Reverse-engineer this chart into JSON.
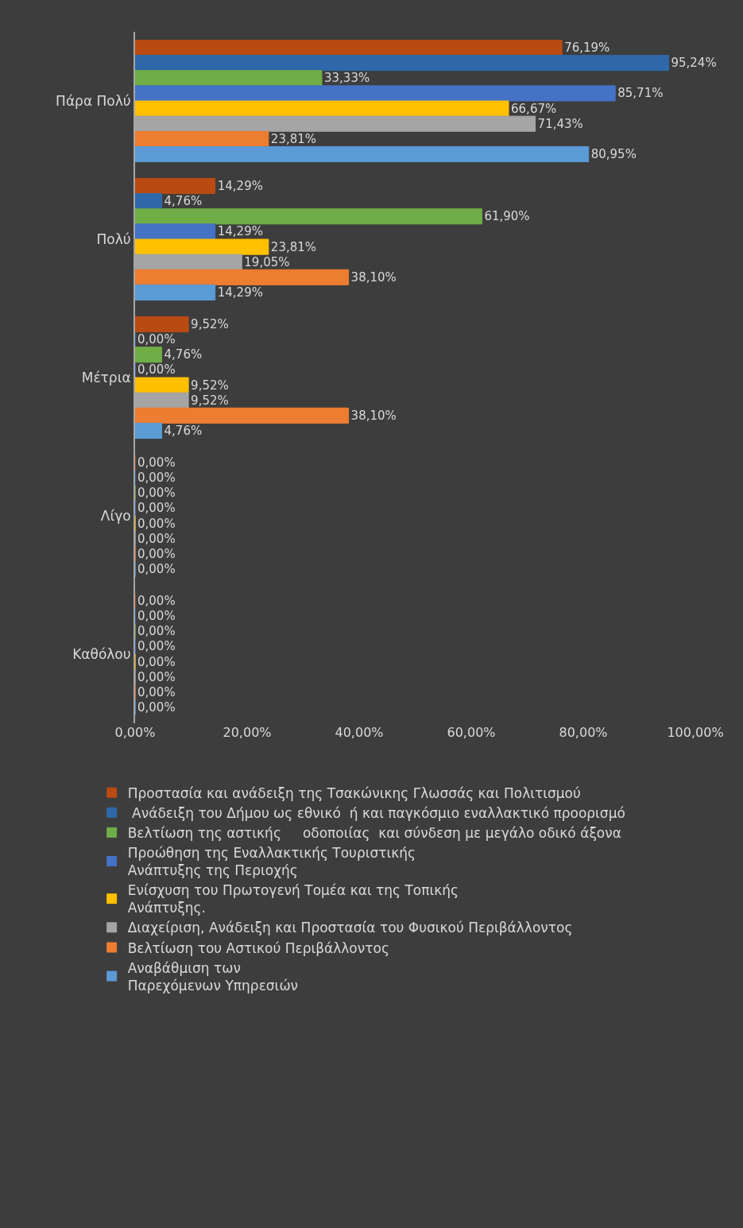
{
  "chart_data": {
    "type": "bar",
    "orientation": "horizontal",
    "categories": [
      "Πάρα Πολύ",
      "Πολύ",
      "Μέτρια",
      "Λίγο",
      "Καθόλου"
    ],
    "series": [
      {
        "name": "Προστασία και ανάδειξη της Τσακώνικης Γλωσσάς και Πολιτισμού",
        "color": "#b94b12",
        "values": [
          76.19,
          14.29,
          9.52,
          0,
          0
        ],
        "value_labels": [
          "76,19%",
          "14,29%",
          "9,52%",
          "0,00%",
          "0,00%"
        ]
      },
      {
        "name": " Ανάδειξη του Δήμου ως εθνικό  ή και παγκόσμιο εναλλακτικό προορισμό",
        "color": "#2f68a8",
        "values": [
          95.24,
          4.76,
          0,
          0,
          0
        ],
        "value_labels": [
          "95,24%",
          "4,76%",
          "0,00%",
          "0,00%",
          "0,00%"
        ]
      },
      {
        "name": "Βελτίωση της αστικής     οδοποιίας  και σύνδεση με μεγάλο οδικό άξονα",
        "color": "#70ad47",
        "values": [
          33.33,
          61.9,
          4.76,
          0,
          0
        ],
        "value_labels": [
          "33,33%",
          "61,90%",
          "4,76%",
          "0,00%",
          "0,00%"
        ]
      },
      {
        "name": "Προώθηση της Εναλλακτικής Τουριστικής\nΑνάπτυξης της Περιοχής",
        "color": "#4472c4",
        "values": [
          85.71,
          14.29,
          0,
          0,
          0
        ],
        "value_labels": [
          "85,71%",
          "14,29%",
          "0,00%",
          "0,00%",
          "0,00%"
        ]
      },
      {
        "name": "Ενίσχυση του Πρωτογενή Τομέα και της Τοπικής\nΑνάπτυξης.",
        "color": "#ffc000",
        "values": [
          66.67,
          23.81,
          9.52,
          0,
          0
        ],
        "value_labels": [
          "66,67%",
          "23,81%",
          "9,52%",
          "0,00%",
          "0,00%"
        ]
      },
      {
        "name": "Διαχείριση, Ανάδειξη και Προστασία του Φυσικού Περιβάλλοντος",
        "color": "#a5a5a5",
        "values": [
          71.43,
          19.05,
          9.52,
          0,
          0
        ],
        "value_labels": [
          "71,43%",
          "19,05%",
          "9,52%",
          "0,00%",
          "0,00%"
        ]
      },
      {
        "name": "Βελτίωση του Αστικού Περιβάλλοντος",
        "color": "#ed7d31",
        "values": [
          23.81,
          38.1,
          38.1,
          0,
          0
        ],
        "value_labels": [
          "23,81%",
          "38,10%",
          "38,10%",
          "0,00%",
          "0,00%"
        ]
      },
      {
        "name": "Αναβάθμιση των\nΠαρεχόμενων Υπηρεσιών",
        "color": "#5b9bd5",
        "values": [
          80.95,
          14.29,
          4.76,
          0,
          0
        ],
        "value_labels": [
          "80,95%",
          "14,29%",
          "4,76%",
          "0,00%",
          "0,00%"
        ]
      }
    ],
    "xlim": [
      0,
      100
    ],
    "xticks": [
      {
        "value": 0,
        "label": "0,00%"
      },
      {
        "value": 20,
        "label": "20,00%"
      },
      {
        "value": 40,
        "label": "40,00%"
      },
      {
        "value": 60,
        "label": "60,00%"
      },
      {
        "value": 80,
        "label": "80,00%"
      },
      {
        "value": 100,
        "label": "100,00%"
      }
    ],
    "grid": false,
    "legend": "bottom"
  }
}
